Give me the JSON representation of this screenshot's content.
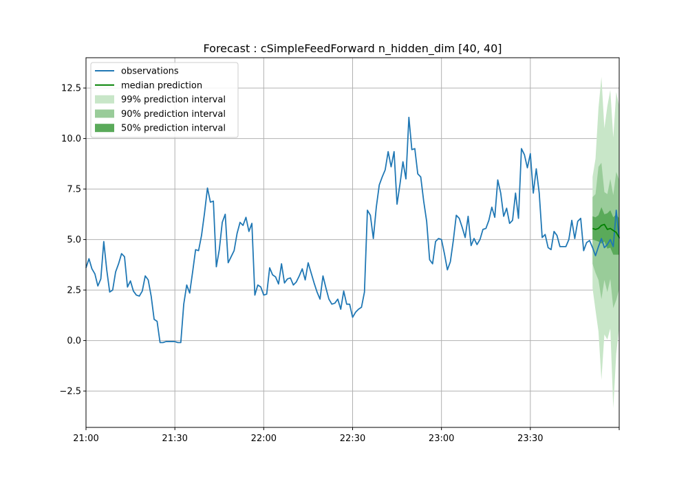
{
  "chart_data": {
    "type": "line",
    "title": "Forecast : cSimpleFeedForward n_hidden_dim [40, 40]",
    "xlabel": "",
    "ylabel": "",
    "x_unit": "5-minute steps from 21:00",
    "xlim": [
      0,
      180
    ],
    "ylim": [
      -4.3,
      14.0
    ],
    "x_ticks": [
      {
        "value": 0,
        "label": "21:00"
      },
      {
        "value": 30,
        "label": "21:30"
      },
      {
        "value": 60,
        "label": "22:00"
      },
      {
        "value": 90,
        "label": "22:30"
      },
      {
        "value": 120,
        "label": "23:00"
      },
      {
        "value": 150,
        "label": "23:30"
      },
      {
        "value": 180,
        "label": ""
      }
    ],
    "y_ticks": [
      {
        "value": -2.5,
        "label": "−2.5"
      },
      {
        "value": 0.0,
        "label": "0.0"
      },
      {
        "value": 2.5,
        "label": "2.5"
      },
      {
        "value": 5.0,
        "label": "5.0"
      },
      {
        "value": 7.5,
        "label": "7.5"
      },
      {
        "value": 10.0,
        "label": "10.0"
      },
      {
        "value": 12.5,
        "label": "12.5"
      }
    ],
    "grid": true,
    "legend_position": "top-left",
    "legend": [
      {
        "label": "observations",
        "kind": "line",
        "color": "#1f77b4"
      },
      {
        "label": "median prediction",
        "kind": "line",
        "color": "#008000"
      },
      {
        "label": "99% prediction interval",
        "kind": "patch",
        "color": "#c8e6c8"
      },
      {
        "label": "90% prediction interval",
        "kind": "patch",
        "color": "#99cc99"
      },
      {
        "label": "50% prediction interval",
        "kind": "patch",
        "color": "#5aaa5a"
      }
    ],
    "observations": {
      "name": "observations",
      "color": "#1f77b4",
      "x_start": 0,
      "x_step": 1,
      "values": [
        3.6,
        4.05,
        3.55,
        3.3,
        2.7,
        3.05,
        4.9,
        3.5,
        2.4,
        2.5,
        3.4,
        3.8,
        4.3,
        4.15,
        2.65,
        2.95,
        2.45,
        2.25,
        2.2,
        2.45,
        3.2,
        3.0,
        2.2,
        1.05,
        0.95,
        -0.1,
        -0.1,
        -0.05,
        -0.05,
        -0.05,
        -0.05,
        -0.1,
        -0.1,
        1.8,
        2.75,
        2.35,
        3.4,
        4.5,
        4.45,
        5.2,
        6.3,
        7.55,
        6.85,
        6.9,
        3.65,
        4.5,
        5.85,
        6.25,
        3.85,
        4.15,
        4.45,
        5.3,
        5.85,
        5.7,
        6.1,
        5.4,
        5.8,
        2.25,
        2.75,
        2.65,
        2.25,
        2.3,
        3.6,
        3.25,
        3.15,
        2.8,
        3.8,
        2.85,
        3.05,
        3.1,
        2.75,
        2.9,
        3.2,
        3.55,
        3.0,
        3.85,
        3.35,
        2.85,
        2.4,
        2.05,
        3.2,
        2.6,
        2.05,
        1.8,
        1.85,
        2.05,
        1.55,
        2.45,
        1.8,
        1.8,
        1.15,
        1.4,
        1.55,
        1.65,
        2.4,
        6.45,
        6.2,
        5.05,
        6.6,
        7.7,
        8.1,
        8.45,
        9.35,
        8.6,
        9.35,
        6.75,
        7.75,
        8.85,
        8.0,
        11.05,
        9.45,
        9.5,
        8.25,
        8.1,
        6.9,
        5.9,
        4.0,
        3.8,
        4.9,
        5.05,
        5.0,
        4.3,
        3.5,
        3.9,
        4.95,
        6.2,
        6.05,
        5.6,
        5.1,
        6.15,
        4.7,
        5.05,
        4.75,
        5.0,
        5.5,
        5.55,
        5.95,
        6.6,
        6.1,
        7.95,
        7.3,
        6.15,
        6.55,
        5.8,
        5.95,
        7.3,
        6.05,
        9.5,
        9.2,
        8.55,
        9.25,
        7.3,
        8.5,
        7.3,
        5.1,
        5.25,
        4.6,
        4.5,
        5.4,
        5.2,
        4.65,
        4.65,
        4.65,
        5.0,
        5.95,
        5.05,
        5.9,
        6.05,
        4.45,
        4.85,
        4.95,
        4.6,
        4.2,
        4.65,
        5.05,
        4.6,
        4.75,
        5.0,
        4.65,
        6.45,
        5.05
      ]
    },
    "forecast": {
      "x_start": 171,
      "x_step": 1,
      "median": [
        5.55,
        5.5,
        5.55,
        5.7,
        5.75,
        5.5,
        5.55,
        5.45,
        5.35,
        5.1
      ],
      "p50_low": [
        5.0,
        4.95,
        4.9,
        4.8,
        4.9,
        4.55,
        4.6,
        4.25,
        4.25,
        4.25
      ],
      "p50_high": [
        6.15,
        6.1,
        6.2,
        6.6,
        6.25,
        6.3,
        6.45,
        6.1,
        6.25,
        6.05
      ],
      "p90_low": [
        3.8,
        3.35,
        3.0,
        2.05,
        3.0,
        2.4,
        3.05,
        1.6,
        2.0,
        2.55
      ],
      "p90_high": [
        7.1,
        7.25,
        8.6,
        8.8,
        7.35,
        7.25,
        8.0,
        7.2,
        8.35,
        7.95
      ],
      "p99_low": [
        2.6,
        1.5,
        0.45,
        -1.95,
        0.3,
        0.05,
        0.6,
        -3.35,
        -0.65,
        0.65
      ],
      "p99_high": [
        8.1,
        9.0,
        11.5,
        13.05,
        10.5,
        11.6,
        12.4,
        10.05,
        12.3,
        11.6
      ]
    }
  }
}
